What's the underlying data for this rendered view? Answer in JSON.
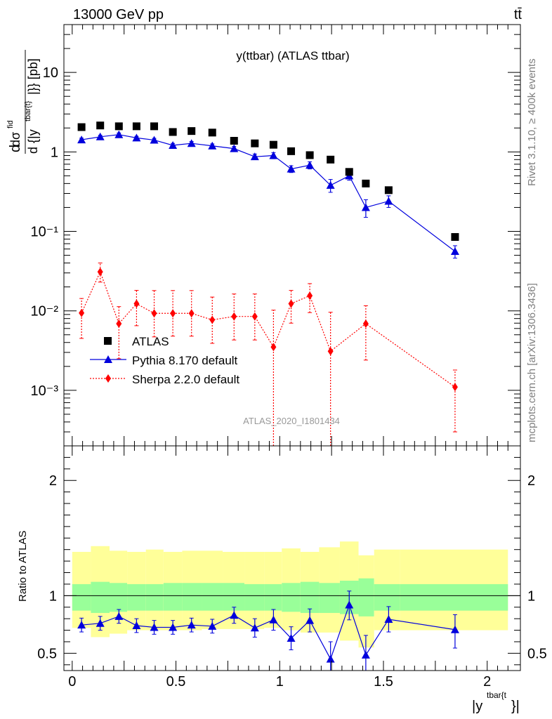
{
  "header": {
    "left": "13000 GeV pp",
    "right": "tt̄"
  },
  "side_labels": {
    "rivet": "Rivet 3.1.10, ≥ 400k events",
    "mcplots": "mcplots.cern.ch [arXiv:1306.3436]"
  },
  "chart_data": [
    {
      "type": "scatter",
      "panel": "main",
      "title": "y(ttbar) (ATLAS ttbar)",
      "ylabel_parts": {
        "d": "d",
        "sigma": "dσ",
        "sigma_sup": "fid",
        "denominator": "d {|y",
        "sup": "tbar{t}",
        "close": "|}} [pb]"
      },
      "xlabel_parts": {
        "base": "|y",
        "sup": "tbar{t",
        "close": "}|"
      },
      "watermark": "ATLAS_2020_I1801434",
      "yscale": "log",
      "ylim": [
        0.0002,
        40
      ],
      "xlim": [
        -0.04,
        2.16
      ],
      "ytick_labels": {
        "m3": "10⁻³",
        "m2": "10⁻²",
        "m1": "10⁻¹",
        "one": "1",
        "ten": "10"
      },
      "xtick_labels": [
        "0",
        "0.5",
        "1",
        "1.5",
        "2"
      ],
      "x": [
        0.045,
        0.135,
        0.225,
        0.31,
        0.395,
        0.485,
        0.575,
        0.675,
        0.78,
        0.88,
        0.97,
        1.055,
        1.145,
        1.245,
        1.335,
        1.415,
        1.525,
        1.845
      ],
      "series": [
        {
          "name": "ATLAS",
          "marker": "square",
          "color": "#000000",
          "values": [
            2.05,
            2.15,
            2.1,
            2.1,
            2.1,
            1.78,
            1.83,
            1.75,
            1.38,
            1.28,
            1.23,
            1.02,
            0.91,
            0.8,
            0.56,
            0.4,
            0.33,
            0.085
          ]
        },
        {
          "name": "Pythia 8.170 default",
          "marker": "triangle",
          "color": "#0000dd",
          "values": [
            1.42,
            1.55,
            1.65,
            1.5,
            1.41,
            1.21,
            1.28,
            1.19,
            1.1,
            0.87,
            0.9,
            0.61,
            0.68,
            0.38,
            0.5,
            0.2,
            0.24,
            0.056
          ],
          "err_low": [
            0.07,
            0.07,
            0.08,
            0.07,
            0.07,
            0.07,
            0.07,
            0.07,
            0.07,
            0.07,
            0.08,
            0.06,
            0.07,
            0.07,
            0.06,
            0.05,
            0.04,
            0.01
          ],
          "err_high": [
            0.07,
            0.07,
            0.08,
            0.07,
            0.07,
            0.07,
            0.07,
            0.07,
            0.07,
            0.07,
            0.08,
            0.06,
            0.07,
            0.07,
            0.06,
            0.05,
            0.04,
            0.01
          ]
        },
        {
          "name": "Sherpa 2.2.0 default",
          "marker": "diamond",
          "color": "#ff0000",
          "values": [
            0.0094,
            0.031,
            0.0069,
            0.0123,
            0.0093,
            0.0093,
            0.0093,
            0.0077,
            0.0085,
            0.0085,
            0.0035,
            0.0123,
            0.0155,
            0.0031,
            0.0069,
            0.0011
          ],
          "x_index": [
            0,
            1,
            2,
            3,
            4,
            5,
            6,
            7,
            8,
            9,
            10,
            11,
            12,
            13,
            15,
            17
          ],
          "err_low": [
            0.0049,
            0.008,
            0.0044,
            0.0058,
            0.0046,
            0.0045,
            0.0045,
            0.0038,
            0.0042,
            0.0042,
            0.0034,
            0.0053,
            0.006,
            0.0029,
            0.0045,
            0.0008
          ],
          "err_high": [
            0.0049,
            0.009,
            0.0044,
            0.0058,
            0.0087,
            0.0087,
            0.0087,
            0.0072,
            0.0078,
            0.0078,
            0.0067,
            0.0058,
            0.0065,
            0.0065,
            0.0047,
            0.0007
          ]
        }
      ],
      "legend": {
        "placement": "lower-left"
      }
    },
    {
      "type": "line",
      "panel": "ratio",
      "ylabel": "Ratio to ATLAS",
      "ylim": [
        0.35,
        2.3
      ],
      "ytick_labels": [
        "0.5",
        "1",
        "2"
      ],
      "bin_edges": [
        0.0,
        0.09,
        0.18,
        0.265,
        0.355,
        0.44,
        0.53,
        0.625,
        0.725,
        0.83,
        0.925,
        1.01,
        1.1,
        1.19,
        1.29,
        1.38,
        1.455,
        1.58,
        2.1
      ],
      "band_stat": {
        "lo": [
          0.87,
          0.85,
          0.86,
          0.87,
          0.87,
          0.87,
          0.87,
          0.87,
          0.87,
          0.87,
          0.87,
          0.86,
          0.85,
          0.85,
          0.84,
          0.82,
          0.87,
          0.87
        ],
        "hi": [
          1.1,
          1.12,
          1.11,
          1.1,
          1.1,
          1.11,
          1.11,
          1.11,
          1.11,
          1.1,
          1.1,
          1.11,
          1.12,
          1.11,
          1.13,
          1.15,
          1.1,
          1.1
        ]
      },
      "band_total": {
        "lo": [
          0.72,
          0.64,
          0.67,
          0.7,
          0.7,
          0.7,
          0.7,
          0.71,
          0.71,
          0.71,
          0.72,
          0.7,
          0.68,
          0.68,
          0.61,
          0.55,
          0.7,
          0.7
        ],
        "hi": [
          1.38,
          1.43,
          1.39,
          1.38,
          1.4,
          1.38,
          1.39,
          1.39,
          1.38,
          1.38,
          1.38,
          1.41,
          1.38,
          1.42,
          1.47,
          1.35,
          1.4,
          1.4
        ]
      },
      "series": [
        {
          "name": "Pythia 8.170 default",
          "color": "#0000dd",
          "values": [
            0.745,
            0.76,
            0.82,
            0.74,
            0.725,
            0.725,
            0.745,
            0.735,
            0.83,
            0.72,
            0.79,
            0.63,
            0.785,
            0.45,
            0.92,
            0.485,
            0.795,
            0.705
          ],
          "err_low": [
            0.06,
            0.06,
            0.06,
            0.06,
            0.06,
            0.06,
            0.06,
            0.06,
            0.07,
            0.08,
            0.09,
            0.1,
            0.1,
            0.15,
            0.13,
            0.17,
            0.11,
            0.16
          ],
          "err_high": [
            0.06,
            0.06,
            0.06,
            0.06,
            0.06,
            0.06,
            0.06,
            0.06,
            0.07,
            0.08,
            0.09,
            0.1,
            0.1,
            0.15,
            0.12,
            0.17,
            0.11,
            0.13
          ]
        }
      ]
    }
  ]
}
